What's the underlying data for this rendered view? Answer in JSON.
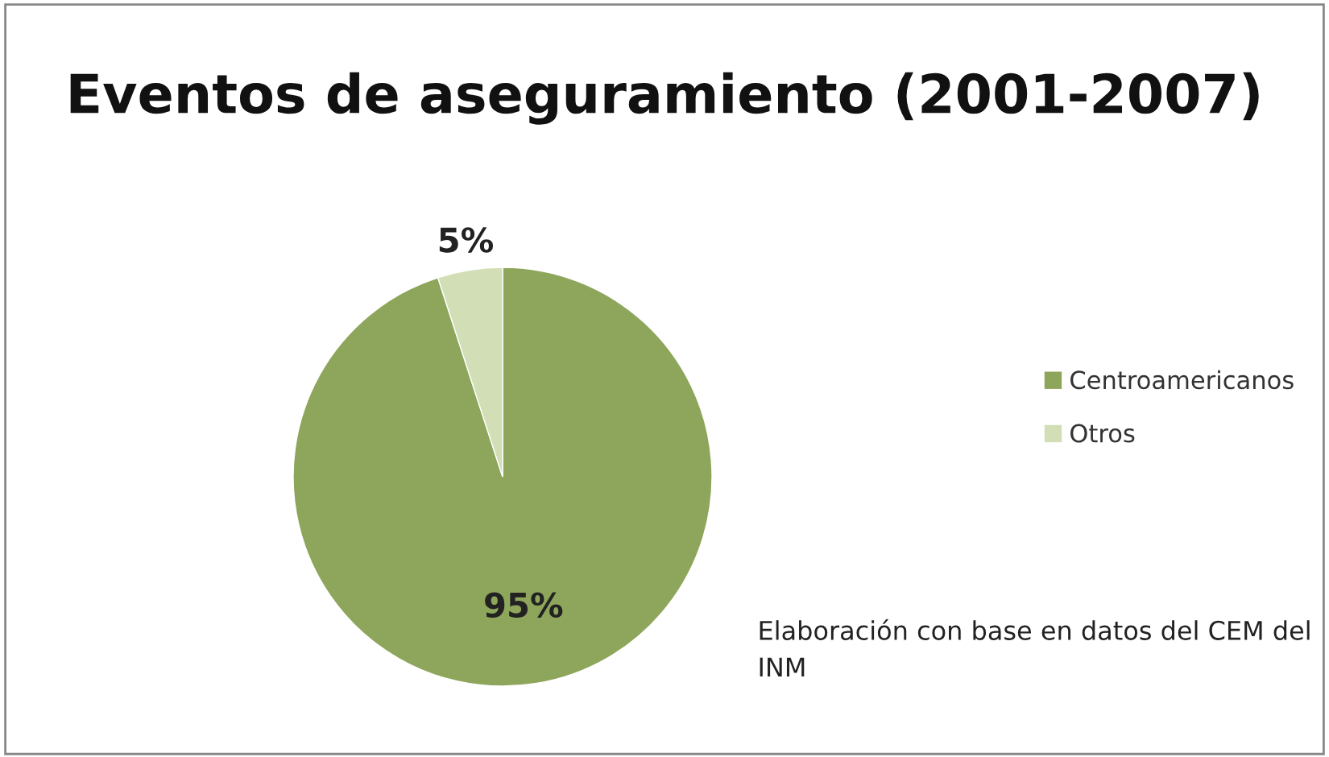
{
  "chart_data": {
    "type": "pie",
    "title": "Eventos de aseguramiento (2001-2007)",
    "categories": [
      "Centroamericanos",
      "Otros"
    ],
    "values": [
      95,
      5
    ],
    "colors": [
      "#8ea65b",
      "#d2deb5"
    ],
    "value_labels": [
      "95%",
      "5%"
    ],
    "legend": "right",
    "annotations": [
      "Elaboración con base en datos del CEM del INM"
    ]
  }
}
